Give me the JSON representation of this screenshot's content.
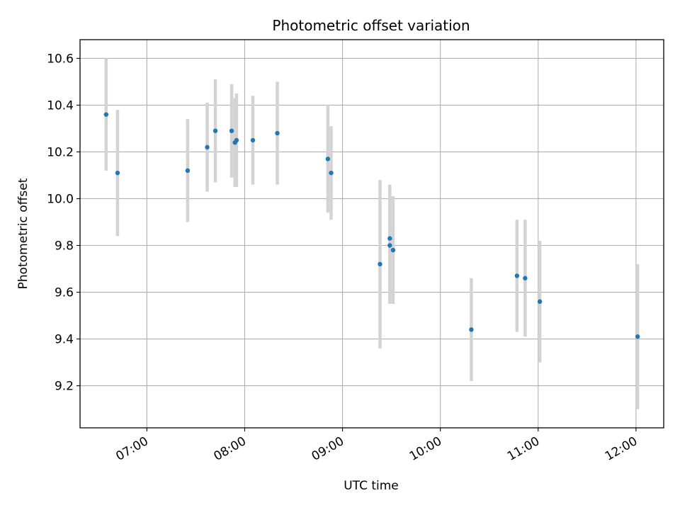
{
  "chart_data": {
    "type": "scatter",
    "title": "Photometric offset variation",
    "xlabel": "UTC time",
    "ylabel": "Photometric offset",
    "xlim": [
      "06:19",
      "12:17"
    ],
    "ylim": [
      9.02,
      10.68
    ],
    "xticks": [
      "07:00",
      "08:00",
      "09:00",
      "10:00",
      "11:00",
      "12:00"
    ],
    "yticks": [
      9.2,
      9.4,
      9.6,
      9.8,
      10.0,
      10.2,
      10.4,
      10.6
    ],
    "ytick_labels": [
      "9.2",
      "9.4",
      "9.6",
      "9.8",
      "10.0",
      "10.2",
      "10.4",
      "10.6"
    ],
    "grid": true,
    "colors": {
      "marker": "#1f77b4",
      "errorbar": "#d3d3d3",
      "grid": "#b0b0b0"
    },
    "series": [
      {
        "points": [
          {
            "x": "06:35",
            "y": 10.36,
            "yerr": 0.24
          },
          {
            "x": "06:42",
            "y": 10.11,
            "yerr": 0.27
          },
          {
            "x": "07:25",
            "y": 10.12,
            "yerr": 0.22
          },
          {
            "x": "07:37",
            "y": 10.22,
            "yerr": 0.19
          },
          {
            "x": "07:42",
            "y": 10.29,
            "yerr": 0.22
          },
          {
            "x": "07:52",
            "y": 10.29,
            "yerr": 0.2
          },
          {
            "x": "07:54",
            "y": 10.24,
            "yerr": 0.19
          },
          {
            "x": "07:55",
            "y": 10.25,
            "yerr": 0.2
          },
          {
            "x": "08:05",
            "y": 10.25,
            "yerr": 0.19
          },
          {
            "x": "08:20",
            "y": 10.28,
            "yerr": 0.22
          },
          {
            "x": "08:51",
            "y": 10.17,
            "yerr": 0.23
          },
          {
            "x": "08:53",
            "y": 10.11,
            "yerr": 0.2
          },
          {
            "x": "09:23",
            "y": 9.72,
            "yerr": 0.36
          },
          {
            "x": "09:29",
            "y": 9.83,
            "yerr": 0.23
          },
          {
            "x": "09:29",
            "y": 9.8,
            "yerr": 0.25
          },
          {
            "x": "09:31",
            "y": 9.78,
            "yerr": 0.23
          },
          {
            "x": "10:19",
            "y": 9.44,
            "yerr": 0.22
          },
          {
            "x": "10:47",
            "y": 9.67,
            "yerr": 0.24
          },
          {
            "x": "10:52",
            "y": 9.66,
            "yerr": 0.25
          },
          {
            "x": "11:01",
            "y": 9.56,
            "yerr": 0.26
          },
          {
            "x": "12:01",
            "y": 9.41,
            "yerr": 0.31
          }
        ]
      }
    ]
  }
}
